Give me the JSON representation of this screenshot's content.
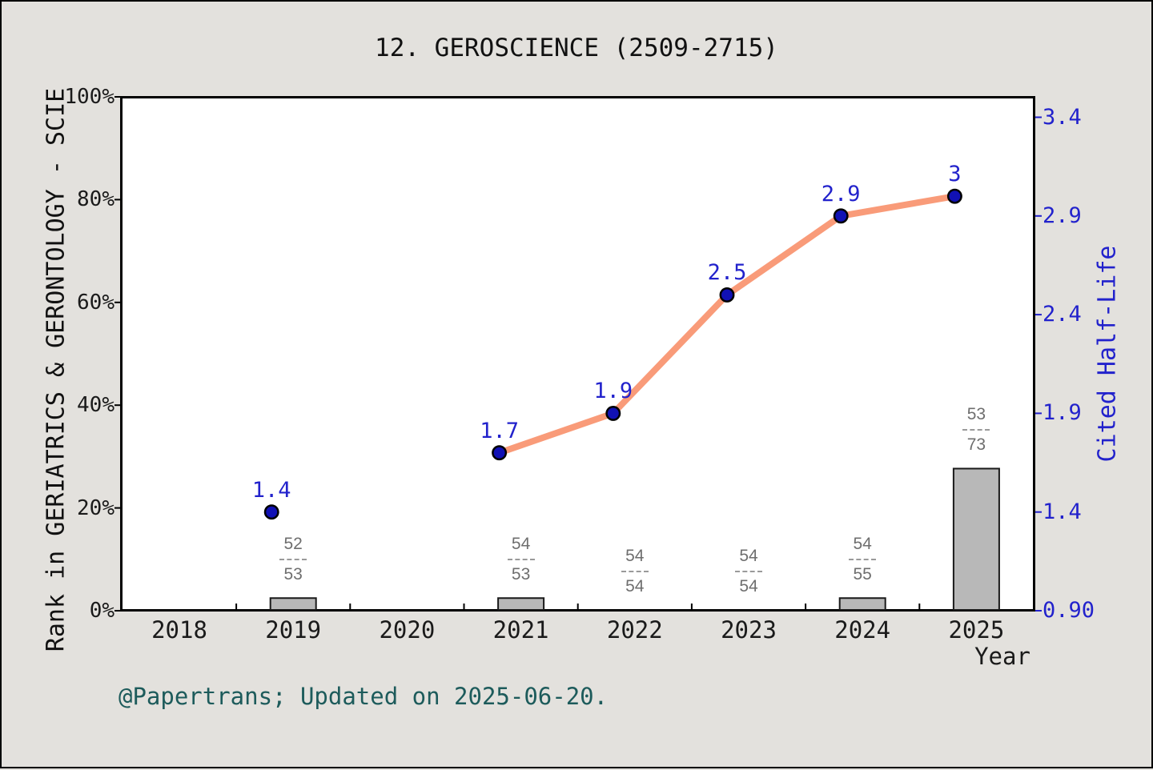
{
  "title": "12. GEROSCIENCE (2509-2715)",
  "footer": "@Papertrans; Updated on 2025-06-20.",
  "colors": {
    "background": "#e3e1dd",
    "plot_background": "#ffffff",
    "axis_black": "#000000",
    "line_salmon": "#f99b79",
    "point_fill_blue": "#1111b4",
    "point_edge": "#000000",
    "value_label_blue": "#2222cc",
    "right_axis_blue": "#2222cc",
    "bar_fill": "#b8b8b8",
    "bar_edge": "#1a1a1a",
    "fraction_gray": "#6e6e6e",
    "fraction_dash_gray": "#9a9a9a",
    "footer_teal": "#1d5b5b"
  },
  "chart_data": {
    "type": "line+bar",
    "title": "12. GEROSCIENCE (2509-2715)",
    "xlabel": "Year",
    "x_categories": [
      2018,
      2019,
      2020,
      2021,
      2022,
      2023,
      2024,
      2025
    ],
    "left_axis": {
      "label": "Rank in GERIATRICS & GERONTOLOGY - SCIE",
      "tick_labels": [
        "0%",
        "20%",
        "40%",
        "60%",
        "80%",
        "100%"
      ],
      "tick_values": [
        0,
        20,
        40,
        60,
        80,
        100
      ],
      "range": [
        0,
        100
      ]
    },
    "right_axis": {
      "label": "Cited Half-Life",
      "tick_labels": [
        "0.90",
        "1.4",
        "1.9",
        "2.4",
        "2.9",
        "3.4"
      ],
      "tick_values": [
        0.9,
        1.4,
        1.9,
        2.4,
        2.9,
        3.4
      ],
      "range": [
        0.9,
        3.4
      ]
    },
    "line_series": {
      "name": "Cited Half-Life",
      "axis": "right",
      "points": [
        {
          "year": 2019,
          "value": 1.4,
          "label": "1.4",
          "in_line": false
        },
        {
          "year": 2021,
          "value": 1.7,
          "label": "1.7",
          "in_line": true
        },
        {
          "year": 2022,
          "value": 1.9,
          "label": "1.9",
          "in_line": true
        },
        {
          "year": 2023,
          "value": 2.5,
          "label": "2.5",
          "in_line": true
        },
        {
          "year": 2024,
          "value": 2.9,
          "label": "2.9",
          "in_line": true
        },
        {
          "year": 2025,
          "value": 3,
          "label": "3",
          "in_line": true
        }
      ]
    },
    "bar_series": {
      "name": "Rank",
      "axis": "left",
      "points": [
        {
          "year": 2019,
          "rank": "52",
          "total": "53",
          "bar_pct": 2.3
        },
        {
          "year": 2021,
          "rank": "54",
          "total": "53",
          "bar_pct": 2.3
        },
        {
          "year": 2022,
          "rank": "54",
          "total": "54",
          "bar_pct": 0
        },
        {
          "year": 2023,
          "rank": "54",
          "total": "54",
          "bar_pct": 0
        },
        {
          "year": 2024,
          "rank": "54",
          "total": "55",
          "bar_pct": 2.3
        },
        {
          "year": 2025,
          "rank": "53",
          "total": "73",
          "bar_pct": 27.5
        }
      ]
    },
    "footer": "@Papertrans; Updated on 2025-06-20."
  }
}
